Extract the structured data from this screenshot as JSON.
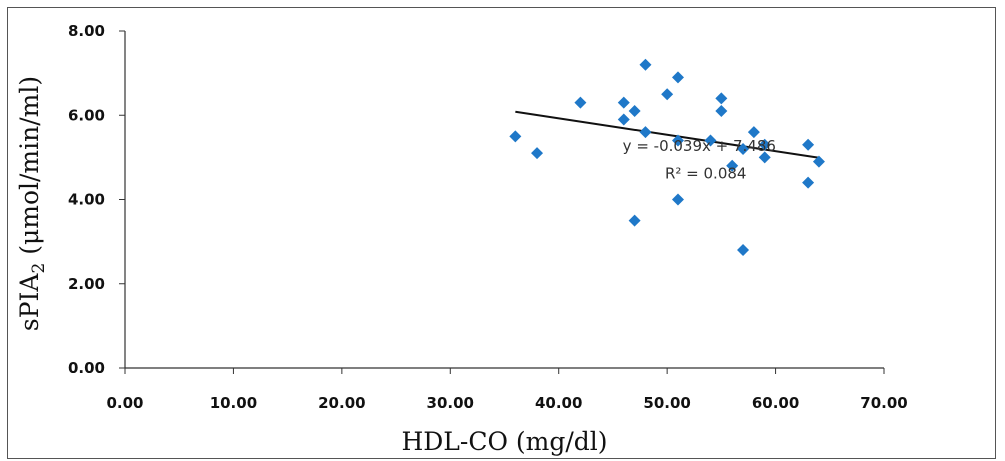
{
  "chart_data": {
    "type": "scatter",
    "title": "",
    "xlabel": "HDL-CO (mg/dl)",
    "ylabel": "sPIA",
    "ylabel_sub": "2",
    "ylabel_unit": " (μmol/min/ml)",
    "xlim": [
      0,
      70
    ],
    "ylim": [
      0,
      8
    ],
    "x_ticks": [
      "0.00",
      "10.00",
      "20.00",
      "30.00",
      "40.00",
      "50.00",
      "60.00",
      "70.00"
    ],
    "y_ticks": [
      "0.00",
      "2.00",
      "4.00",
      "6.00",
      "8.00"
    ],
    "grid": false,
    "legend": "none",
    "marker_color": "#1f78c8",
    "trendline_color": "#111111",
    "points": [
      {
        "x": 36,
        "y": 5.5
      },
      {
        "x": 38,
        "y": 5.1
      },
      {
        "x": 42,
        "y": 6.3
      },
      {
        "x": 46,
        "y": 6.3
      },
      {
        "x": 46,
        "y": 5.9
      },
      {
        "x": 47,
        "y": 6.1
      },
      {
        "x": 47,
        "y": 3.5
      },
      {
        "x": 48,
        "y": 7.2
      },
      {
        "x": 48,
        "y": 5.6
      },
      {
        "x": 50,
        "y": 6.5
      },
      {
        "x": 51,
        "y": 6.9
      },
      {
        "x": 51,
        "y": 5.4
      },
      {
        "x": 51,
        "y": 4.0
      },
      {
        "x": 54,
        "y": 5.4
      },
      {
        "x": 55,
        "y": 6.4
      },
      {
        "x": 55,
        "y": 6.1
      },
      {
        "x": 56,
        "y": 4.8
      },
      {
        "x": 57,
        "y": 5.2
      },
      {
        "x": 57,
        "y": 2.8
      },
      {
        "x": 58,
        "y": 5.6
      },
      {
        "x": 59,
        "y": 5.3
      },
      {
        "x": 59,
        "y": 5.0
      },
      {
        "x": 63,
        "y": 5.3
      },
      {
        "x": 63,
        "y": 4.4
      },
      {
        "x": 64,
        "y": 4.9
      }
    ],
    "trendline": {
      "type": "linear",
      "x_range": [
        36,
        64
      ],
      "equation_label": "y = -0.039x + 7.486",
      "r2_label": "R² = 0.084",
      "slope": -0.039,
      "intercept": 7.486
    }
  }
}
